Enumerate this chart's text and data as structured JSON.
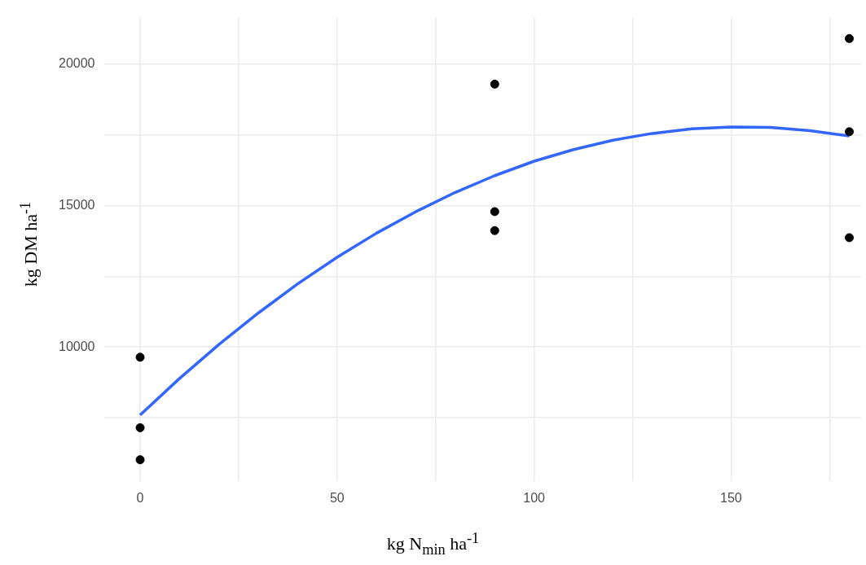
{
  "chart_data": {
    "type": "scatter",
    "xlabel": "kg N$_{min}$ ha$^{-1}$",
    "ylabel": "kg DM ha$^{-1}$",
    "xlim": [
      -9,
      183
    ],
    "ylim": [
      5270,
      21630
    ],
    "xticks": [
      0,
      {
        "value": 25,
        "label": null
      },
      50,
      {
        "value": 75,
        "label": null
      },
      100,
      {
        "value": 125,
        "label": null
      },
      150,
      {
        "value": 175,
        "label": null
      }
    ],
    "yticks": [
      {
        "value": 7500,
        "label": null
      },
      10000,
      {
        "value": 12500,
        "label": null
      },
      15000,
      {
        "value": 17500,
        "label": null
      },
      20000
    ],
    "grid": true,
    "legend": false,
    "marker": "circle",
    "series": [
      {
        "color": "#000000",
        "x": [
          0,
          0,
          0,
          90,
          90,
          90,
          180,
          180,
          180
        ],
        "values": [
          6020,
          7150,
          9640,
          19280,
          14780,
          14110,
          20890,
          17600,
          13860
        ]
      },
      {
        "type": "line",
        "color": "#3366ff",
        "line_style": "solid",
        "marker": "none",
        "x": [
          0,
          10,
          20,
          30,
          40,
          50,
          60,
          70,
          80,
          90,
          100,
          110,
          120,
          130,
          140,
          150,
          160,
          170,
          180
        ],
        "values": [
          7600,
          8890,
          10090,
          11200,
          12230,
          13170,
          14020,
          14780,
          15460,
          16050,
          16560,
          16970,
          17300,
          17540,
          17700,
          17770,
          17750,
          17640,
          17450
        ]
      }
    ]
  }
}
